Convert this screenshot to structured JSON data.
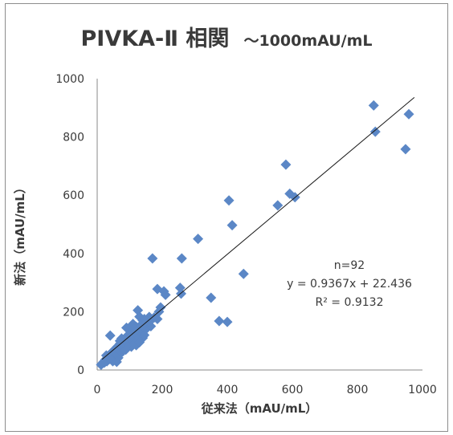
{
  "chart_data": {
    "type": "scatter",
    "title": "PIVKA-Ⅱ 相関",
    "subtitle": "～1000mAU/mL",
    "xlabel": "従来法（mAU/mL）",
    "ylabel": "新法（mAU/mL）",
    "xlim": [
      0,
      1000
    ],
    "ylim": [
      0,
      1000
    ],
    "x_ticks": [
      "0",
      "200",
      "400",
      "600",
      "800",
      "1000"
    ],
    "y_ticks": [
      "0",
      "200",
      "400",
      "600",
      "800",
      "1000"
    ],
    "grid": false,
    "marker": "diamond",
    "marker_color": "#5b87c6",
    "trendline": {
      "type": "linear",
      "slope": 0.9367,
      "intercept": 22.436,
      "color": "#1a1a1a"
    },
    "annotations": [
      "n=92",
      "y = 0.9367x + 22.436",
      "R² = 0.9132"
    ],
    "points": [
      [
        850,
        908
      ],
      [
        958,
        878
      ],
      [
        855,
        818
      ],
      [
        948,
        758
      ],
      [
        580,
        705
      ],
      [
        405,
        582
      ],
      [
        592,
        605
      ],
      [
        608,
        593
      ],
      [
        555,
        565
      ],
      [
        415,
        497
      ],
      [
        310,
        450
      ],
      [
        260,
        383
      ],
      [
        170,
        383
      ],
      [
        450,
        330
      ],
      [
        350,
        248
      ],
      [
        375,
        168
      ],
      [
        400,
        165
      ],
      [
        185,
        278
      ],
      [
        205,
        270
      ],
      [
        210,
        258
      ],
      [
        255,
        282
      ],
      [
        258,
        262
      ],
      [
        195,
        215
      ],
      [
        185,
        175
      ],
      [
        125,
        205
      ],
      [
        130,
        183
      ],
      [
        140,
        170
      ],
      [
        150,
        162
      ],
      [
        160,
        182
      ],
      [
        110,
        158
      ],
      [
        100,
        145
      ],
      [
        90,
        145
      ],
      [
        115,
        130
      ],
      [
        108,
        122
      ],
      [
        125,
        122
      ],
      [
        135,
        140
      ],
      [
        95,
        118
      ],
      [
        88,
        112
      ],
      [
        75,
        108
      ],
      [
        80,
        98
      ],
      [
        70,
        90
      ],
      [
        62,
        80
      ],
      [
        55,
        72
      ],
      [
        50,
        65
      ],
      [
        45,
        60
      ],
      [
        40,
        55
      ],
      [
        35,
        45
      ],
      [
        30,
        40
      ],
      [
        25,
        35
      ],
      [
        20,
        28
      ],
      [
        15,
        22
      ],
      [
        12,
        18
      ],
      [
        40,
        118
      ],
      [
        60,
        50
      ],
      [
        70,
        55
      ],
      [
        80,
        65
      ],
      [
        90,
        85
      ],
      [
        100,
        100
      ],
      [
        105,
        80
      ],
      [
        120,
        85
      ],
      [
        125,
        105
      ],
      [
        140,
        110
      ],
      [
        55,
        35
      ],
      [
        65,
        42
      ],
      [
        48,
        30
      ],
      [
        30,
        30
      ],
      [
        22,
        25
      ],
      [
        58,
        58
      ],
      [
        68,
        70
      ],
      [
        78,
        75
      ],
      [
        85,
        90
      ],
      [
        95,
        92
      ],
      [
        110,
        95
      ],
      [
        118,
        110
      ],
      [
        130,
        95
      ],
      [
        145,
        120
      ],
      [
        120,
        148
      ],
      [
        135,
        155
      ],
      [
        150,
        140
      ],
      [
        165,
        150
      ],
      [
        60,
        28
      ],
      [
        28,
        50
      ],
      [
        38,
        38
      ],
      [
        72,
        80
      ],
      [
        88,
        70
      ],
      [
        100,
        110
      ],
      [
        112,
        140
      ],
      [
        145,
        175
      ],
      [
        160,
        165
      ],
      [
        175,
        180
      ],
      [
        190,
        200
      ],
      [
        70,
        100
      ]
    ]
  }
}
